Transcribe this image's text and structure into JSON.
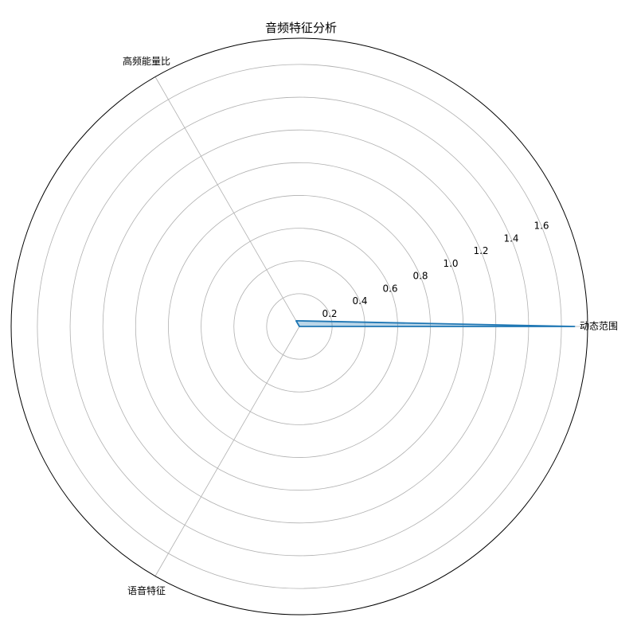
{
  "chart_data": {
    "type": "radar",
    "title": "音频特征分析",
    "categories": [
      "动态范围",
      "高频能量比",
      "语音特征"
    ],
    "series": [
      {
        "values": [
          1.68,
          0.04,
          0.0
        ],
        "color": "#1f77b4",
        "fill": "#1f77b4"
      }
    ],
    "r_ticks": [
      0.2,
      0.4,
      0.6,
      0.8,
      1.0,
      1.2,
      1.4,
      1.6
    ],
    "r_tick_labels": [
      "0.2",
      "0.4",
      "0.6",
      "0.8",
      "1.0",
      "1.2",
      "1.4",
      "1.6"
    ],
    "rlim": [
      0,
      1.76
    ],
    "grid": true
  }
}
